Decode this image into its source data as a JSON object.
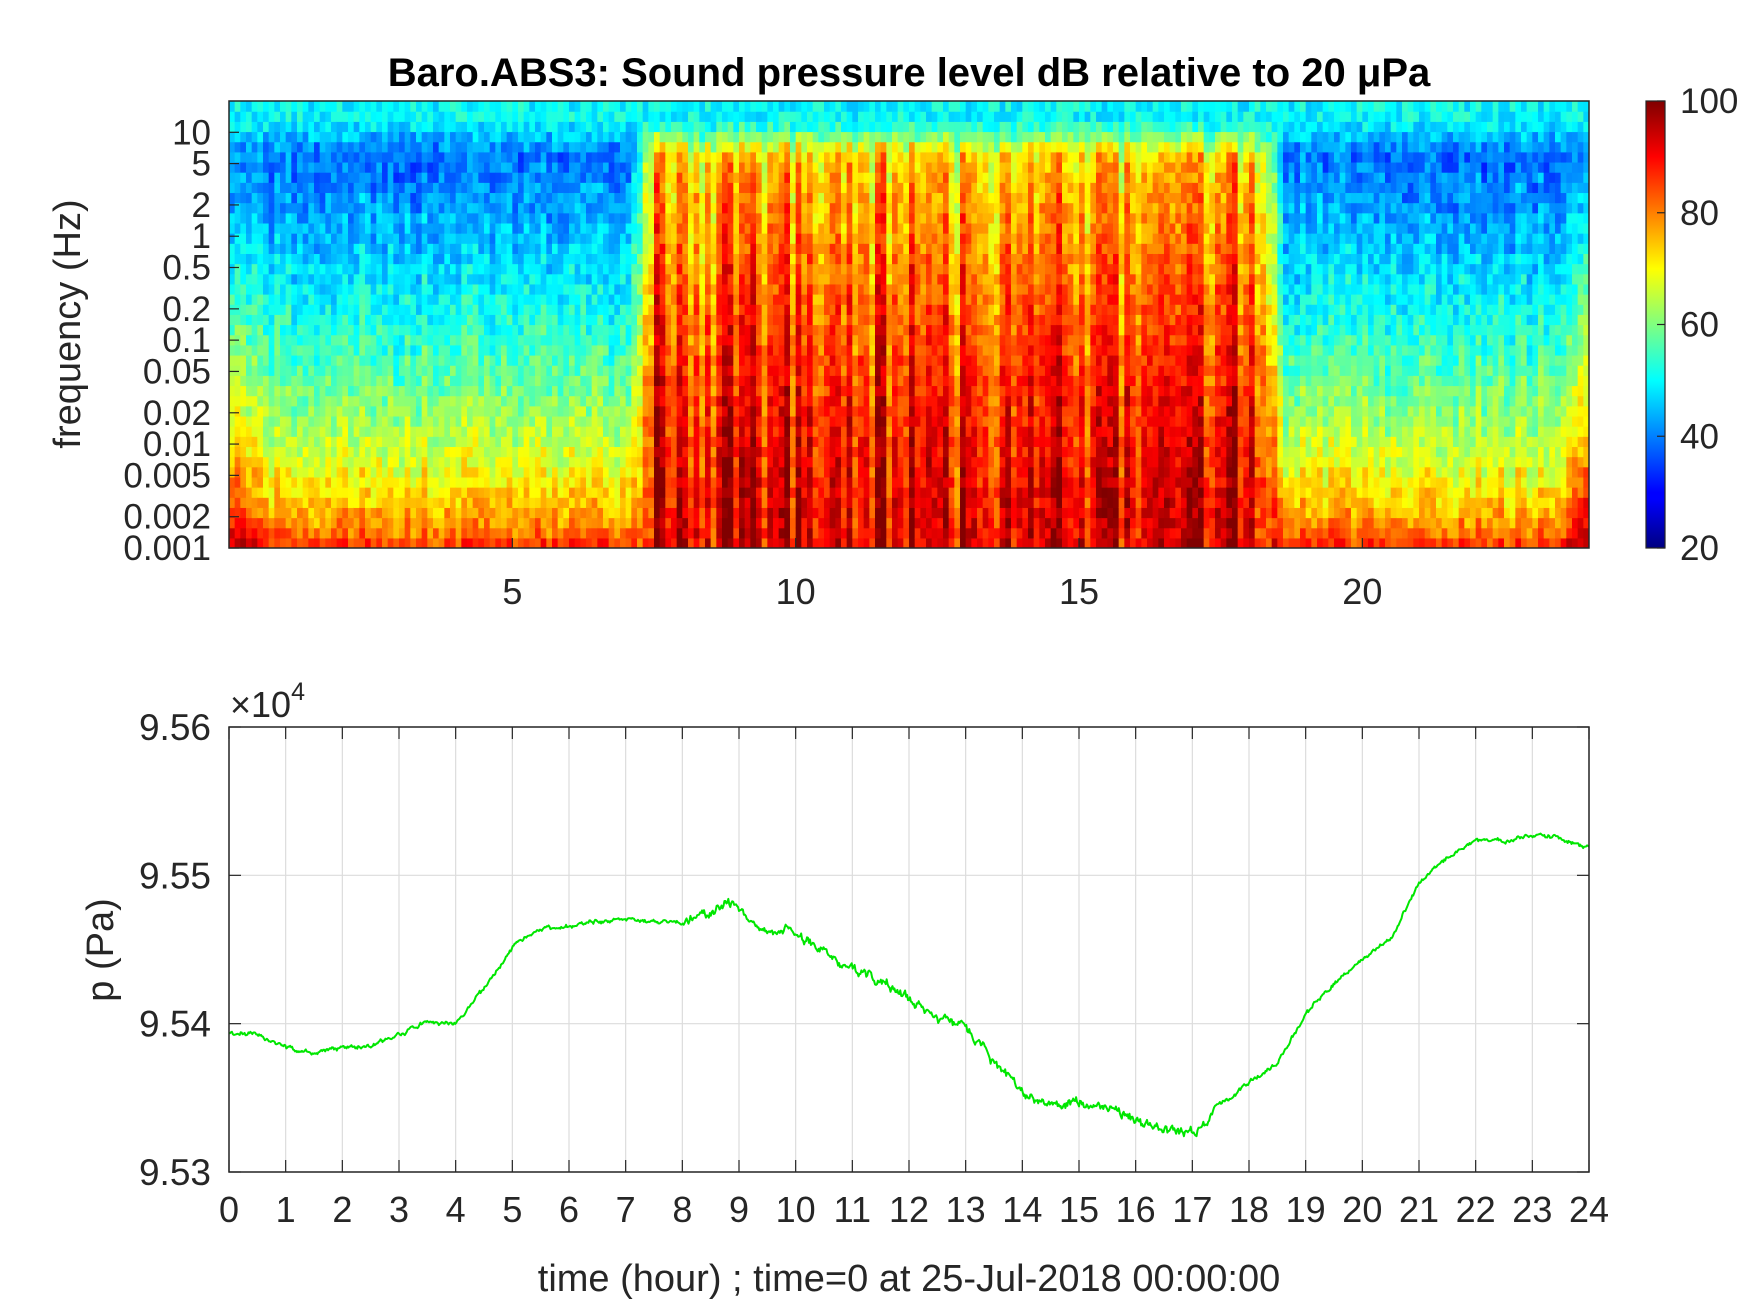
{
  "chart_data": [
    {
      "type": "heatmap",
      "title": "Baro.ABS3: Sound pressure level dB relative to 20 μPa",
      "ylabel": "frequency (Hz)",
      "xlabel": "",
      "x_ticks": [
        5,
        10,
        15,
        20
      ],
      "x_tick_labels": [
        "5",
        "10",
        "15",
        "20"
      ],
      "xlim": [
        0,
        24
      ],
      "y_scale": "log",
      "ylim": [
        0.001,
        20
      ],
      "y_ticks": [
        0.001,
        0.002,
        0.005,
        0.01,
        0.02,
        0.05,
        0.1,
        0.2,
        0.5,
        1,
        2,
        5,
        10
      ],
      "y_tick_labels": [
        "0.001",
        "0.002",
        "0.005",
        "0.01",
        "0.02",
        "0.05",
        "0.1",
        "0.2",
        "0.5",
        "1",
        "2",
        "5",
        "10"
      ],
      "colormap": "jet",
      "colorbar": {
        "min": 20,
        "max": 100,
        "ticks": [
          20,
          40,
          60,
          80,
          100
        ],
        "tick_labels": [
          "20",
          "40",
          "60",
          "80",
          "100"
        ]
      },
      "description_of_values": {
        "quiet_periods_hours": [
          [
            0,
            7.2
          ],
          [
            18.5,
            24
          ]
        ],
        "loud_period_hours": [
          7.2,
          18.5
        ],
        "quiet_high_freq_dB": 40,
        "loud_high_freq_dB": 75,
        "low_freq_dB": 90,
        "top_band_dB": 50
      }
    },
    {
      "type": "line",
      "ylabel": "p (Pa)",
      "xlabel": "time (hour) ; time=0 at 25-Jul-2018 00:00:00",
      "exponent_label": "×10",
      "exponent_power": "4",
      "xlim": [
        0,
        24
      ],
      "ylim": [
        9.53,
        9.56
      ],
      "x_ticks": [
        0,
        1,
        2,
        3,
        4,
        5,
        6,
        7,
        8,
        9,
        10,
        11,
        12,
        13,
        14,
        15,
        16,
        17,
        18,
        19,
        20,
        21,
        22,
        23,
        24
      ],
      "x_tick_labels": [
        "0",
        "1",
        "2",
        "3",
        "4",
        "5",
        "6",
        "7",
        "8",
        "9",
        "10",
        "11",
        "12",
        "13",
        "14",
        "15",
        "16",
        "17",
        "18",
        "19",
        "20",
        "21",
        "22",
        "23",
        "24"
      ],
      "y_ticks": [
        9.53,
        9.54,
        9.55,
        9.56
      ],
      "y_tick_labels": [
        "9.53",
        "9.54",
        "9.55",
        "9.56"
      ],
      "grid": true,
      "color": "#00e600",
      "series": [
        {
          "x": [
            0,
            0.5,
            1,
            1.5,
            2,
            2.5,
            3,
            3.5,
            4,
            4.5,
            5,
            5.5,
            6,
            6.5,
            7,
            7.5,
            8,
            8.5,
            8.9,
            9.2,
            9.6,
            10,
            10.5,
            11,
            11.5,
            12,
            12.5,
            13,
            13.5,
            14,
            14.5,
            15,
            15.5,
            16,
            16.5,
            17,
            17.5,
            18,
            18.5,
            19,
            19.5,
            20,
            20.5,
            21,
            21.5,
            22,
            22.5,
            23,
            23.5,
            24
          ],
          "y": [
            9.5394,
            9.5392,
            9.5384,
            9.538,
            9.5384,
            9.5385,
            9.5392,
            9.5402,
            9.54,
            9.5424,
            9.5451,
            9.5464,
            9.5466,
            9.5469,
            9.5471,
            9.5469,
            9.5468,
            9.5476,
            9.5481,
            9.5469,
            9.546,
            9.5462,
            9.5447,
            9.5437,
            9.5429,
            9.5417,
            9.5404,
            9.5397,
            9.5375,
            9.5353,
            9.5345,
            9.5348,
            9.5344,
            9.5336,
            9.5328,
            9.5325,
            9.5345,
            9.5361,
            9.5373,
            9.5407,
            9.5427,
            9.5444,
            9.5457,
            9.5495,
            9.5512,
            9.5524,
            9.5523,
            9.5528,
            9.5524,
            9.5518
          ]
        }
      ]
    }
  ]
}
